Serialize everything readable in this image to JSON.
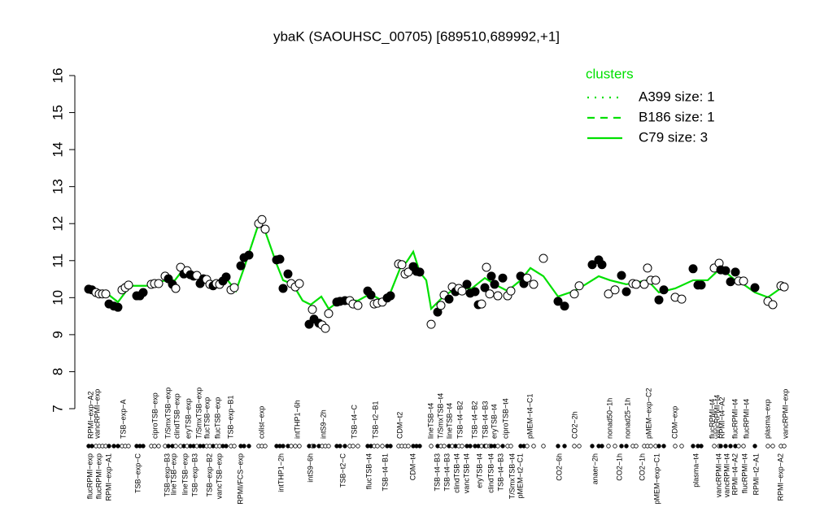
{
  "chart_data": {
    "type": "scatter",
    "title": "ybaK (SAOUHSC_00705) [689510,689992,+1]",
    "ylim": [
      7,
      16
    ],
    "yticks": [
      7,
      8,
      9,
      10,
      11,
      12,
      13,
      14,
      15,
      16
    ],
    "xlim": [
      0,
      865
    ],
    "points": {
      "x": [
        4,
        8,
        13,
        17,
        21,
        25,
        29,
        35,
        40,
        45,
        49,
        53,
        63,
        67,
        71,
        81,
        85,
        90,
        98,
        102,
        107,
        111,
        117,
        121,
        125,
        129,
        133,
        137,
        141,
        145,
        149,
        153,
        157,
        161,
        165,
        169,
        173,
        179,
        183,
        191,
        195,
        201,
        213,
        217,
        221,
        235,
        239,
        243,
        249,
        253,
        258,
        263,
        275,
        279,
        281,
        287,
        291,
        295,
        299,
        309,
        313,
        319,
        325,
        329,
        335,
        347,
        351,
        355,
        359,
        365,
        371,
        375,
        385,
        389,
        393,
        397,
        403,
        407,
        411,
        425,
        433,
        437,
        441,
        447,
        451,
        455,
        459,
        463,
        469,
        473,
        479,
        483,
        487,
        491,
        493,
        497,
        499,
        503,
        507,
        513,
        519,
        523,
        535,
        539,
        543,
        551,
        563,
        581,
        589,
        601,
        607,
        623,
        631,
        635,
        643,
        651,
        659,
        665,
        673,
        677,
        687,
        691,
        695,
        701,
        705,
        711,
        725,
        733,
        747,
        753,
        757,
        773,
        779,
        781,
        787,
        793,
        799,
        803,
        809,
        823,
        839,
        845,
        855,
        859
      ],
      "values": [
        10.23,
        10.21,
        10.14,
        10.1,
        10.1,
        10.1,
        9.83,
        9.77,
        9.74,
        10.21,
        10.27,
        10.34,
        10.05,
        10.05,
        10.14,
        10.36,
        10.38,
        10.38,
        10.58,
        10.51,
        10.36,
        10.25,
        10.82,
        10.64,
        10.73,
        10.62,
        10.58,
        10.6,
        10.38,
        10.51,
        10.49,
        10.36,
        10.32,
        10.38,
        10.36,
        10.45,
        10.56,
        10.21,
        10.27,
        10.86,
        11.08,
        11.15,
        12.0,
        12.11,
        11.85,
        11.02,
        11.04,
        10.25,
        10.64,
        10.38,
        10.29,
        10.38,
        9.28,
        9.68,
        9.42,
        9.31,
        9.26,
        9.17,
        9.57,
        9.88,
        9.9,
        9.92,
        9.92,
        9.83,
        9.79,
        10.18,
        10.07,
        9.83,
        9.85,
        9.88,
        9.99,
        10.05,
        10.91,
        10.89,
        10.64,
        10.69,
        10.84,
        10.71,
        10.69,
        9.28,
        9.61,
        9.79,
        10.07,
        9.96,
        10.29,
        10.16,
        10.25,
        10.18,
        10.36,
        10.12,
        10.16,
        9.81,
        9.83,
        10.27,
        10.82,
        10.1,
        10.58,
        10.36,
        10.05,
        10.53,
        10.05,
        10.18,
        10.58,
        10.38,
        10.53,
        10.36,
        11.06,
        9.9,
        9.77,
        10.1,
        10.32,
        10.89,
        11.02,
        10.89,
        10.1,
        10.21,
        10.6,
        10.16,
        10.38,
        10.36,
        10.36,
        10.8,
        10.47,
        10.47,
        9.94,
        10.21,
        10.01,
        9.96,
        10.78,
        10.34,
        10.34,
        10.8,
        10.93,
        10.75,
        10.73,
        10.43,
        10.69,
        10.45,
        10.45,
        10.27,
        9.9,
        9.81,
        10.32,
        10.29
      ],
      "filled": [
        true,
        true,
        false,
        false,
        false,
        false,
        true,
        true,
        true,
        false,
        false,
        false,
        true,
        true,
        true,
        false,
        false,
        false,
        false,
        true,
        true,
        false,
        false,
        true,
        false,
        true,
        true,
        false,
        true,
        true,
        false,
        false,
        true,
        false,
        false,
        true,
        true,
        false,
        false,
        true,
        true,
        true,
        false,
        false,
        false,
        true,
        true,
        true,
        true,
        false,
        false,
        false,
        true,
        false,
        true,
        true,
        false,
        false,
        false,
        true,
        true,
        true,
        false,
        false,
        false,
        true,
        true,
        false,
        false,
        false,
        true,
        true,
        false,
        false,
        false,
        false,
        true,
        true,
        true,
        false,
        true,
        false,
        false,
        true,
        false,
        true,
        false,
        false,
        true,
        true,
        true,
        true,
        false,
        true,
        false,
        false,
        true,
        true,
        false,
        true,
        false,
        false,
        true,
        true,
        false,
        false,
        false,
        true,
        true,
        false,
        false,
        true,
        true,
        true,
        false,
        false,
        true,
        true,
        false,
        false,
        false,
        false,
        false,
        false,
        true,
        true,
        false,
        false,
        true,
        true,
        true,
        false,
        false,
        true,
        true,
        true,
        true,
        false,
        false,
        true,
        false,
        false,
        false,
        false
      ]
    },
    "series": [
      {
        "color": "#00e000",
        "x": [
          4,
          25,
          40,
          55,
          75,
          95,
          110,
          117,
          135,
          155,
          175,
          185,
          195,
          213,
          221,
          235,
          243,
          255,
          267,
          277,
          290,
          299,
          313,
          335,
          350,
          365,
          375,
          387,
          395,
          403,
          411,
          419,
          425,
          440,
          455,
          475,
          491,
          503,
          519,
          535,
          547,
          563,
          581,
          601,
          615,
          631,
          645,
          665,
          691,
          705,
          725,
          747,
          765,
          781,
          799,
          809,
          823,
          839,
          859
        ],
        "values": [
          10.21,
          10.14,
          9.88,
          10.32,
          10.32,
          10.45,
          10.47,
          10.67,
          10.53,
          10.43,
          10.47,
          10.18,
          10.8,
          12.0,
          11.79,
          10.91,
          10.47,
          10.36,
          9.92,
          9.81,
          10.03,
          9.7,
          9.92,
          9.92,
          10.1,
          9.92,
          10.14,
          10.8,
          10.97,
          11.24,
          10.69,
          10.47,
          9.7,
          10.03,
          10.25,
          10.25,
          10.53,
          10.36,
          10.18,
          10.47,
          10.8,
          10.58,
          10.03,
          10.18,
          10.36,
          10.58,
          10.47,
          10.36,
          10.47,
          10.14,
          10.25,
          10.47,
          10.47,
          10.8,
          10.47,
          10.36,
          10.14,
          10.01,
          10.32
        ]
      }
    ],
    "legend": {
      "title": "clusters",
      "position": "top-right",
      "color": "#00e000",
      "entries": [
        {
          "name": "A399 size: 1",
          "dash": "dotted"
        },
        {
          "name": "B186 size: 1",
          "dash": "dashed"
        },
        {
          "name": "C79 size: 3",
          "dash": "solid"
        }
      ]
    },
    "top_labels": {
      "x": [
        7,
        15,
        47,
        86,
        102,
        113,
        127,
        140,
        150,
        163,
        179,
        217,
        261,
        293,
        331,
        357,
        387,
        425,
        437,
        448,
        461,
        479,
        492,
        503,
        517,
        547,
        602,
        645,
        667,
        693,
        725,
        771,
        777,
        783,
        799,
        813,
        839,
        861
      ],
      "labels": [
        "RPMI−exp−A2",
        "vancRPMI−exp",
        "TSB−exp−A",
        "ciproTSB−exp",
        "T/SmxTSB−exp",
        "clindTSB−exp",
        "eryTSB−exp",
        "T/SmxTSB−exp",
        "flucTSB−exp",
        "flucTSB−exp",
        "TSB−exp−B1",
        "colist−exp",
        "intTHP1−6h",
        "intS9−2h",
        "TSB−t4−C",
        "TSB−t2−B1",
        "CDM−t2",
        "lineTSB−t4",
        "T/SmxTSB−t4",
        "lineTSB−t4",
        "TSB−t4−B2",
        "TSB−t4−B2",
        "TSB−t4−B3",
        "eryTSB−t4",
        "ciproTSB−t4",
        "pMEM−t4−C1",
        "CO2−2h",
        "nonad50−1h",
        "nonad25−1h",
        "pMEM−exp−C2",
        "CDM−exp",
        "flucRPMI−t4",
        "vancRPMI−t4",
        "RPMI−t4−A2",
        "flucRPMI−t4",
        "flucRPMI−t4",
        "plasma−exp",
        "vancRPMI−exp"
      ]
    },
    "bottom_labels": {
      "x": [
        6,
        17,
        29,
        65,
        101,
        109,
        123,
        135,
        153,
        165,
        191,
        241,
        277,
        317,
        349,
        369,
        403,
        433,
        445,
        457,
        469,
        485,
        499,
        511,
        525,
        535,
        583,
        627,
        657,
        685,
        703,
        751,
        779,
        789,
        799,
        811,
        825,
        855
      ],
      "labels": [
        "flucRPMI−exp",
        "flucRPMI−exp",
        "RPMI−exp−A1",
        "TSB−exp−C",
        "TSB−exp−B3",
        "lineTSB−exp",
        "lineTSB−exp",
        "TSB−exp−B3",
        "TSB−exp−B2",
        "vancTSB−exp",
        "RPMI/FCS−exp",
        "intTHP1−2h",
        "intS9−6h",
        "TSB−t2−C",
        "flucTSB−t4",
        "TSB−t4−B1",
        "CDM−t4",
        "TSB−t4−B3",
        "TSB−t4−B3",
        "clindTSB−t4",
        "vancTSB−t4",
        "eryTSB−t4",
        "clindTSB−t4",
        "TSB−t4−B3",
        "T/SmxTSB−t4",
        "pMEM−t2−C1",
        "CO2−6h",
        "anaer−2h",
        "CO2−1h",
        "CO2−1h",
        "pMEM−exp−C1",
        "plasma−t4",
        "vancRPMI−t4",
        "vancRPMI−t4",
        "RPMI−t4−A2",
        "flucRPMI−t4",
        "RPMI−t2−A1",
        "RPMI−exp−A2"
      ]
    }
  }
}
